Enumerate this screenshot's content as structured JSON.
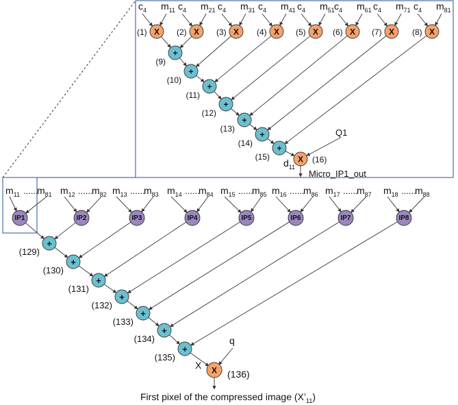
{
  "colors": {
    "multiplier": "#F5A26B",
    "adder": "#6CBFCF",
    "ip": "#9B86BD",
    "stroke": "#333333",
    "frame": "#4A6FA5"
  },
  "top": {
    "coefs": [
      {
        "coef": "c",
        "coef_sub": "4",
        "m": "m",
        "m_sub": "11"
      },
      {
        "coef": "c",
        "coef_sub": "4",
        "m": "m",
        "m_sub": "21"
      },
      {
        "coef": "c",
        "coef_sub": "4",
        "m": "m",
        "m_sub": "31"
      },
      {
        "coef": "c",
        "coef_sub": "4",
        "m": "m",
        "m_sub": "41"
      },
      {
        "coef": "c",
        "coef_sub": "4",
        "m": "m",
        "m_sub": "51"
      },
      {
        "coef": "c",
        "coef_sub": "4",
        "m": "m",
        "m_sub": "61"
      },
      {
        "coef": "c",
        "coef_sub": "4",
        "m": "m",
        "m_sub": "71"
      },
      {
        "coef": "c",
        "coef_sub": "4",
        "m": "m",
        "m_sub": "81"
      }
    ],
    "mult_symbol": "X",
    "add_symbol": "+",
    "mult_labels": [
      "(1)",
      "(2)",
      "(3)",
      "(4)",
      "(5)",
      "(6)",
      "(7)",
      "(8)"
    ],
    "adder_labels": [
      "(9)",
      "(10)",
      "(11)",
      "(12)",
      "(13)",
      "(14)",
      "(15)"
    ],
    "final_mult_label": "(16)",
    "q_label": "Q1",
    "d_label": "d",
    "d_sub": "11",
    "out_label": "Micro_IP1_out"
  },
  "bottom": {
    "ip_labels": [
      "IP1",
      "IP2",
      "IP3",
      "IP4",
      "IP5",
      "IP6",
      "IP7",
      "IP8"
    ],
    "ranges": [
      {
        "a": "m",
        "a_sub": "11",
        "dots": "......",
        "b": "m",
        "b_sub": "81"
      },
      {
        "a": "m",
        "a_sub": "12",
        "dots": "......",
        "b": "m",
        "b_sub": "82"
      },
      {
        "a": "m",
        "a_sub": "13",
        "dots": "......",
        "b": "m",
        "b_sub": "83"
      },
      {
        "a": "m",
        "a_sub": "14",
        "dots": "......",
        "b": "m",
        "b_sub": "84"
      },
      {
        "a": "m",
        "a_sub": "15",
        "dots": "......",
        "b": "m",
        "b_sub": "85"
      },
      {
        "a": "m",
        "a_sub": "16",
        "dots": "......",
        "b": "m",
        "b_sub": "86"
      },
      {
        "a": "m",
        "a_sub": "17",
        "dots": "......",
        "b": "m",
        "b_sub": "87"
      },
      {
        "a": "m",
        "a_sub": "18",
        "dots": "......",
        "b": "m",
        "b_sub": "88"
      }
    ],
    "adder_labels": [
      "(129)",
      "(130)",
      "(131)",
      "(132)",
      "(133)",
      "(134)",
      "(135)"
    ],
    "x_label": "X",
    "q_label": "q",
    "final_mult_label": "(136)",
    "caption": "First pixel of the compressed image (X’",
    "caption_sub": "11",
    "caption_end": ")"
  }
}
